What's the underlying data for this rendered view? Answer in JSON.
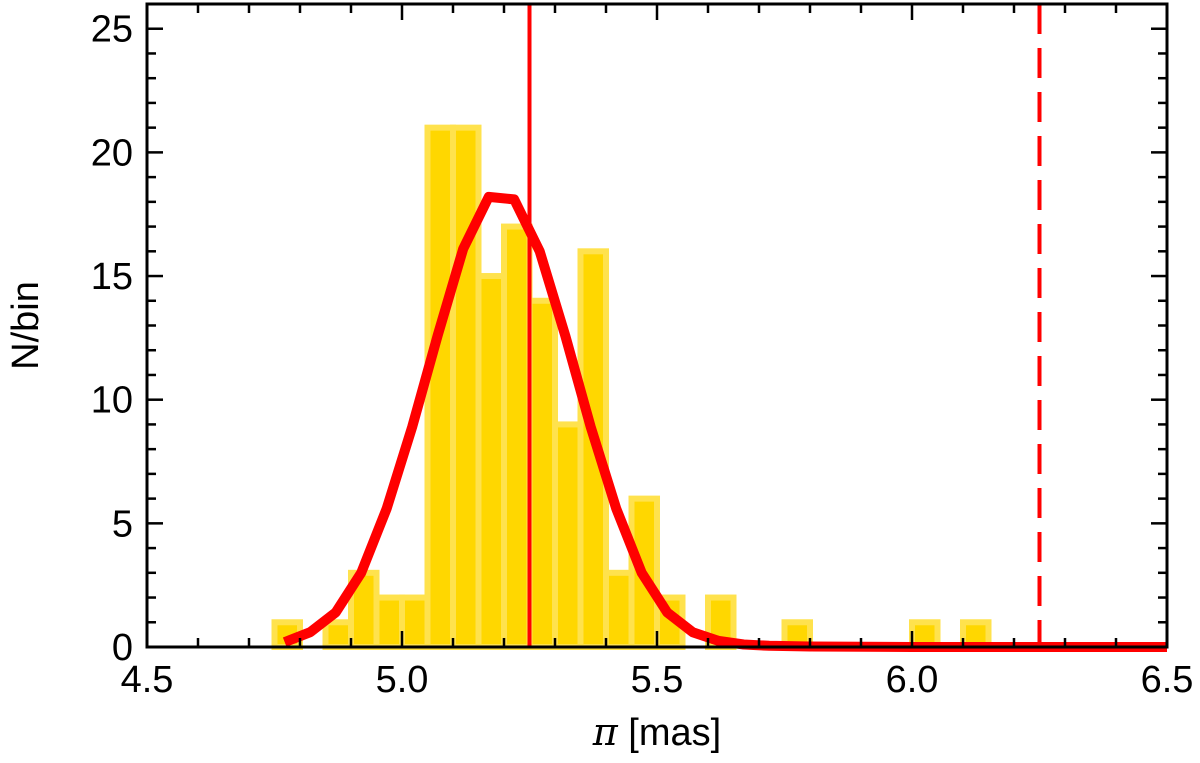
{
  "chart_data": {
    "type": "bar",
    "xlabel_symbol": "π",
    "xlabel_unit": " [mas]",
    "ylabel": "N/bin",
    "xlim": [
      4.5,
      6.5
    ],
    "ylim": [
      0,
      26
    ],
    "x_ticks": [
      "4.5",
      "5.0",
      "5.5",
      "6.0",
      "6.5"
    ],
    "y_ticks": [
      "0",
      "5",
      "10",
      "15",
      "20",
      "25"
    ],
    "x_tick_values": [
      4.5,
      5.0,
      5.5,
      6.0,
      6.5
    ],
    "y_tick_values": [
      0,
      5,
      10,
      15,
      20,
      25
    ],
    "x_minor_step": 0.1,
    "y_minor_step": 1,
    "bin_width": 0.05,
    "bins": [
      {
        "x": 4.775,
        "count": 1
      },
      {
        "x": 4.825,
        "count": 0
      },
      {
        "x": 4.875,
        "count": 1
      },
      {
        "x": 4.925,
        "count": 3
      },
      {
        "x": 4.975,
        "count": 2
      },
      {
        "x": 5.025,
        "count": 2
      },
      {
        "x": 5.075,
        "count": 21
      },
      {
        "x": 5.125,
        "count": 21
      },
      {
        "x": 5.175,
        "count": 15
      },
      {
        "x": 5.225,
        "count": 17
      },
      {
        "x": 5.275,
        "count": 14
      },
      {
        "x": 5.325,
        "count": 9
      },
      {
        "x": 5.375,
        "count": 16
      },
      {
        "x": 5.425,
        "count": 3
      },
      {
        "x": 5.475,
        "count": 6
      },
      {
        "x": 5.525,
        "count": 2
      },
      {
        "x": 5.575,
        "count": 0
      },
      {
        "x": 5.625,
        "count": 2
      },
      {
        "x": 5.775,
        "count": 1
      },
      {
        "x": 6.025,
        "count": 1
      },
      {
        "x": 6.125,
        "count": 1
      }
    ],
    "fit_curve": {
      "x": [
        4.77,
        4.82,
        4.87,
        4.92,
        4.97,
        5.02,
        5.07,
        5.12,
        5.17,
        5.22,
        5.27,
        5.32,
        5.37,
        5.42,
        5.47,
        5.52,
        5.57,
        5.62,
        5.67,
        5.72,
        5.8,
        6.0,
        6.2,
        6.5
      ],
      "y": [
        0.2,
        0.6,
        1.4,
        3.0,
        5.6,
        8.9,
        12.6,
        16.1,
        18.2,
        18.1,
        16.0,
        12.6,
        8.9,
        5.6,
        3.0,
        1.4,
        0.6,
        0.25,
        0.1,
        0.05,
        0.02,
        0.0,
        0.0,
        0.0
      ],
      "color": "#ff0000"
    },
    "vertical_lines": [
      {
        "x": 5.25,
        "style": "solid",
        "color": "#ff0000"
      },
      {
        "x": 6.25,
        "style": "dashed",
        "color": "#ff0000"
      }
    ],
    "bar_color": "#ffd700",
    "bar_edge_color": "#ffe24d",
    "grid": false
  }
}
